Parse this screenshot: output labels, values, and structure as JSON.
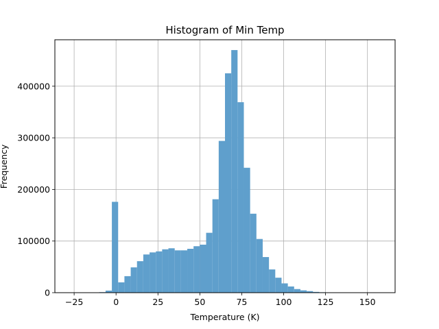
{
  "chart_data": {
    "type": "bar",
    "title": "Histogram of Min Temp",
    "xlabel": "Temperature (K)",
    "ylabel": "Frequency",
    "xlim": [
      -36.5,
      166.5
    ],
    "ylim": [
      0,
      490000
    ],
    "xticks": [
      -25,
      0,
      25,
      50,
      75,
      100,
      125,
      150
    ],
    "xtick_labels": [
      "−25",
      "0",
      "25",
      "50",
      "75",
      "100",
      "125",
      "150"
    ],
    "yticks": [
      0,
      100000,
      200000,
      300000,
      400000
    ],
    "ytick_labels": [
      "0",
      "100000",
      "200000",
      "300000",
      "400000"
    ],
    "grid": true,
    "bar_color": "#5f9fcc",
    "bins": [
      {
        "x0": -10,
        "x1": -6.25,
        "value": 1000
      },
      {
        "x0": -6.25,
        "x1": -2.5,
        "value": 4000
      },
      {
        "x0": -2.5,
        "x1": 1.25,
        "value": 176000
      },
      {
        "x0": 1.25,
        "x1": 5,
        "value": 20000
      },
      {
        "x0": 5,
        "x1": 8.75,
        "value": 32000
      },
      {
        "x0": 8.75,
        "x1": 12.5,
        "value": 49000
      },
      {
        "x0": 12.5,
        "x1": 16.25,
        "value": 61000
      },
      {
        "x0": 16.25,
        "x1": 20,
        "value": 74000
      },
      {
        "x0": 20,
        "x1": 23.75,
        "value": 78000
      },
      {
        "x0": 23.75,
        "x1": 27.5,
        "value": 80000
      },
      {
        "x0": 27.5,
        "x1": 31.25,
        "value": 84000
      },
      {
        "x0": 31.25,
        "x1": 35,
        "value": 86000
      },
      {
        "x0": 35,
        "x1": 38.75,
        "value": 82000
      },
      {
        "x0": 38.75,
        "x1": 42.5,
        "value": 82000
      },
      {
        "x0": 42.5,
        "x1": 46.25,
        "value": 85000
      },
      {
        "x0": 46.25,
        "x1": 50,
        "value": 90000
      },
      {
        "x0": 50,
        "x1": 53.75,
        "value": 93000
      },
      {
        "x0": 53.75,
        "x1": 57.5,
        "value": 116000
      },
      {
        "x0": 57.5,
        "x1": 61.25,
        "value": 181000
      },
      {
        "x0": 61.25,
        "x1": 65,
        "value": 294000
      },
      {
        "x0": 65,
        "x1": 68.75,
        "value": 425000
      },
      {
        "x0": 68.75,
        "x1": 72.5,
        "value": 470000
      },
      {
        "x0": 72.5,
        "x1": 76.25,
        "value": 369000
      },
      {
        "x0": 76.25,
        "x1": 80,
        "value": 242000
      },
      {
        "x0": 80,
        "x1": 83.75,
        "value": 153000
      },
      {
        "x0": 83.75,
        "x1": 87.5,
        "value": 104000
      },
      {
        "x0": 87.5,
        "x1": 91.25,
        "value": 69000
      },
      {
        "x0": 91.25,
        "x1": 95,
        "value": 45000
      },
      {
        "x0": 95,
        "x1": 98.75,
        "value": 29000
      },
      {
        "x0": 98.75,
        "x1": 102.5,
        "value": 18000
      },
      {
        "x0": 102.5,
        "x1": 106.25,
        "value": 12000
      },
      {
        "x0": 106.25,
        "x1": 110,
        "value": 7000
      },
      {
        "x0": 110,
        "x1": 113.75,
        "value": 4500
      },
      {
        "x0": 113.75,
        "x1": 117.5,
        "value": 3000
      },
      {
        "x0": 117.5,
        "x1": 121.25,
        "value": 1500
      },
      {
        "x0": 121.25,
        "x1": 125,
        "value": 800
      },
      {
        "x0": 125,
        "x1": 128.75,
        "value": 300
      }
    ]
  }
}
